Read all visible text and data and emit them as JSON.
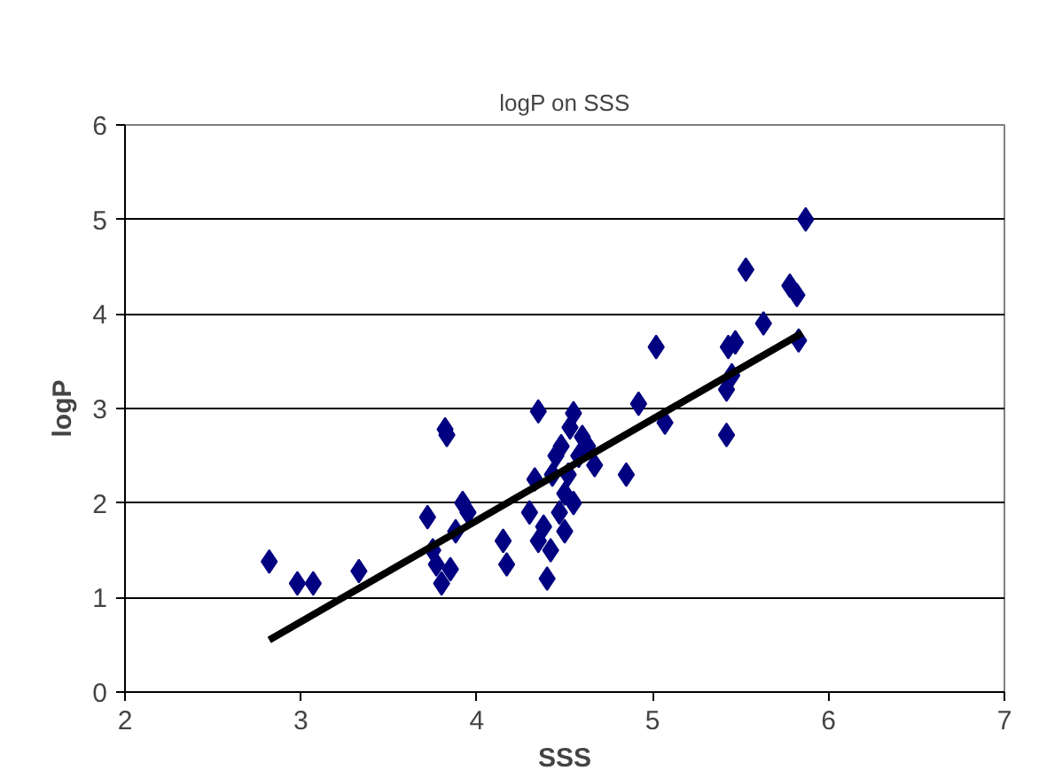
{
  "chart_data": {
    "type": "scatter",
    "title": "logP on SSS",
    "xlabel": "SSS",
    "ylabel": "logP",
    "xlim": [
      2,
      7
    ],
    "ylim": [
      0,
      6
    ],
    "xticks": [
      2,
      3,
      4,
      5,
      6,
      7
    ],
    "yticks": [
      0,
      1,
      2,
      3,
      4,
      5,
      6
    ],
    "grid": "y",
    "marker": "diamond",
    "series": [
      {
        "color": "#000080",
        "x": [
          2.82,
          2.98,
          3.07,
          3.33,
          3.72,
          3.75,
          3.77,
          3.8,
          3.82,
          3.83,
          3.85,
          3.88,
          3.92,
          3.95,
          4.15,
          4.17,
          4.3,
          4.33,
          4.35,
          4.35,
          4.38,
          4.4,
          4.42,
          4.43,
          4.45,
          4.47,
          4.48,
          4.5,
          4.5,
          4.52,
          4.53,
          4.55,
          4.55,
          4.58,
          4.6,
          4.63,
          4.67,
          4.85,
          4.92,
          5.02,
          5.07,
          5.42,
          5.42,
          5.43,
          5.45,
          5.47,
          5.53,
          5.63,
          5.78,
          5.82,
          5.83,
          5.87
        ],
        "values": [
          1.38,
          1.15,
          1.15,
          1.28,
          1.85,
          1.5,
          1.35,
          1.15,
          2.78,
          2.72,
          1.3,
          1.7,
          2.0,
          1.9,
          1.6,
          1.35,
          1.9,
          2.25,
          2.97,
          1.6,
          1.75,
          1.2,
          1.5,
          2.3,
          2.5,
          1.9,
          2.6,
          1.7,
          2.1,
          2.3,
          2.8,
          2.95,
          2.0,
          2.5,
          2.7,
          2.6,
          2.4,
          2.3,
          3.05,
          3.65,
          2.85,
          2.72,
          3.2,
          3.65,
          3.35,
          3.7,
          4.47,
          3.9,
          4.3,
          4.2,
          3.72,
          5.0
        ]
      },
      {
        "type": "line",
        "color": "#000000",
        "marker": "none",
        "x": [
          2.82,
          5.85
        ],
        "values": [
          0.55,
          3.8
        ]
      }
    ]
  }
}
